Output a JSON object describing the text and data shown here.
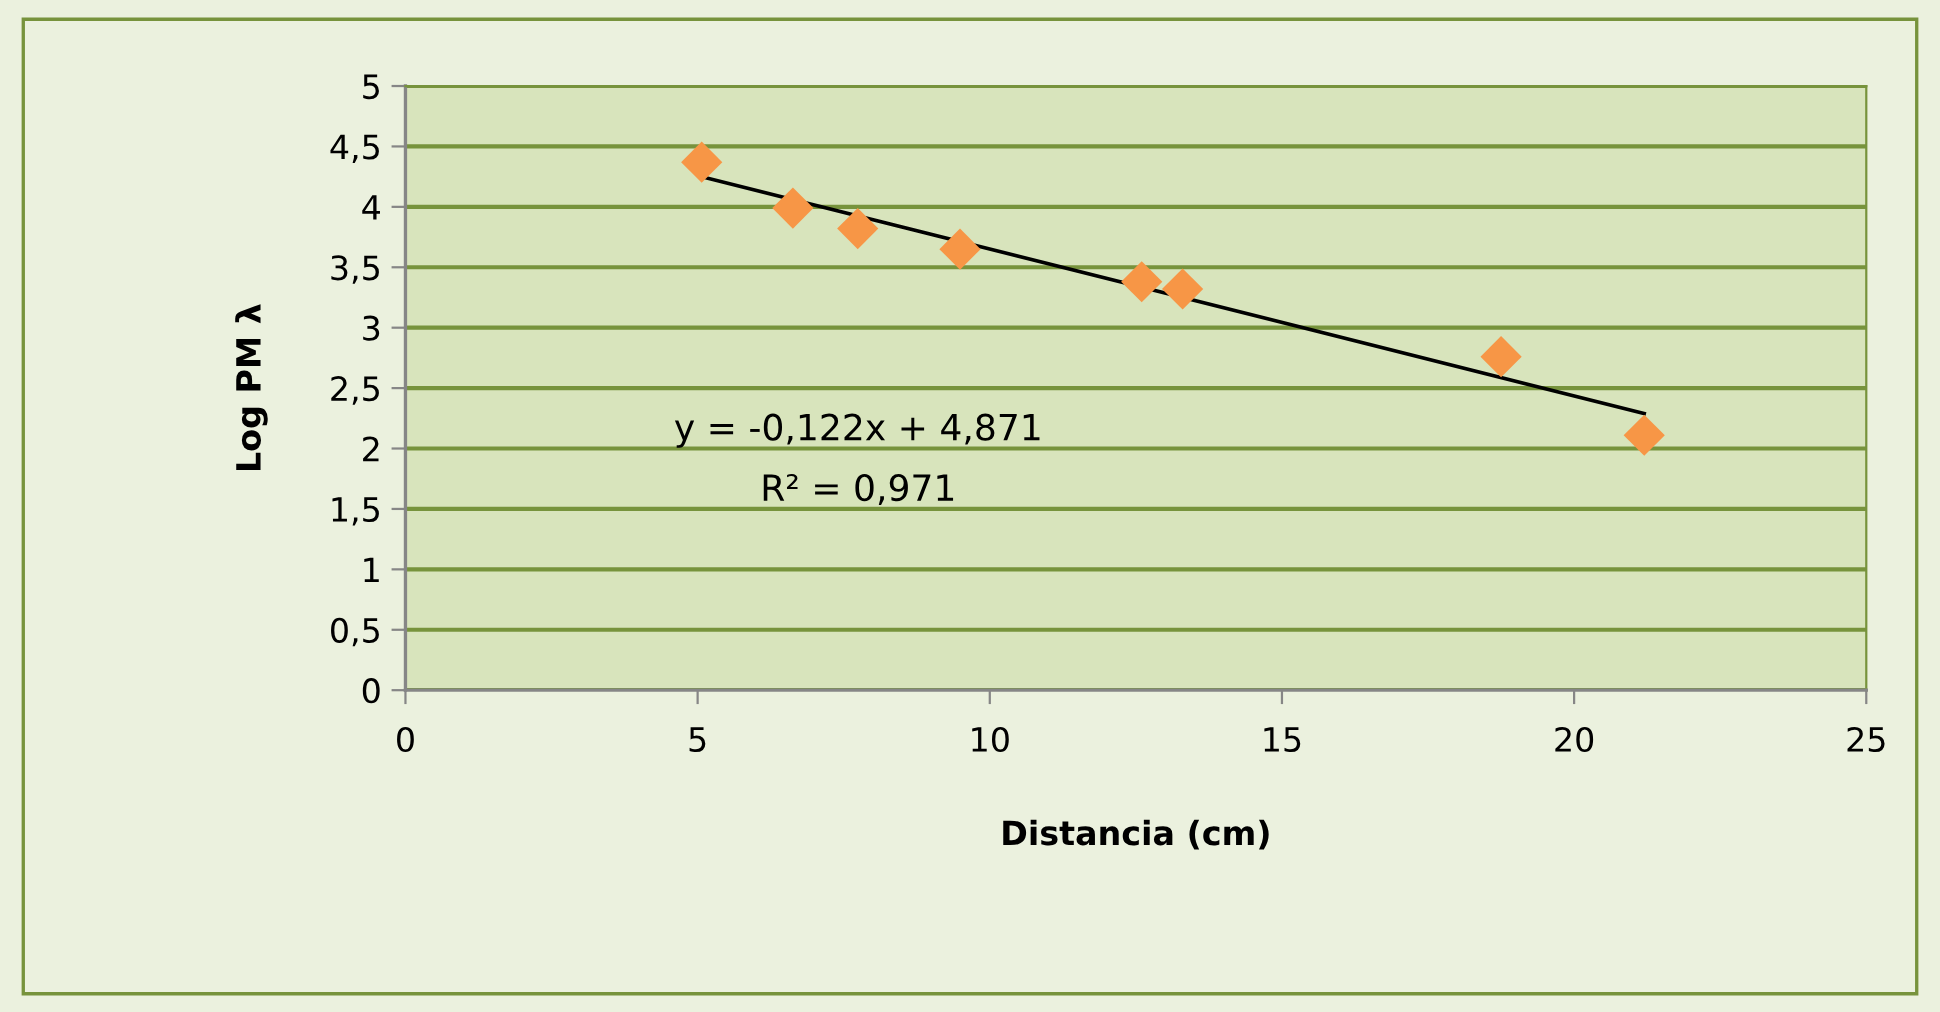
{
  "chart_data": {
    "type": "scatter",
    "xlabel": "Distancia (cm)",
    "ylabel": "Log PM λ",
    "series": [
      {
        "color": "#f79646",
        "marker": "diamond",
        "x": [
          5.07,
          6.63,
          7.74,
          9.49,
          12.6,
          13.3,
          18.75,
          21.2
        ],
        "values": [
          4.37,
          3.99,
          3.82,
          3.65,
          3.38,
          3.32,
          2.76,
          2.11
        ]
      },
      {
        "type": "line",
        "color": "#000000",
        "marker": "none",
        "line_style": "solid",
        "x": [
          5.07,
          21.2
        ],
        "values": [
          4.25,
          2.29
        ]
      }
    ],
    "annotations": [
      "y = -0,122x + 4,871",
      "R² = 0,971"
    ],
    "xlim": [
      0,
      25
    ],
    "xticks": [
      0,
      5,
      10,
      15,
      20,
      25
    ],
    "ylim": [
      0,
      5
    ],
    "yticks": [
      0,
      {
        "value": 0.5,
        "label": "0,5"
      },
      1,
      {
        "value": 1.5,
        "label": "1,5"
      },
      2,
      {
        "value": 2.5,
        "label": "2,5"
      },
      3,
      {
        "value": 3.5,
        "label": "3,5"
      },
      4,
      {
        "value": 4.5,
        "label": "4,5"
      },
      5
    ],
    "grid": "y",
    "legend": false
  }
}
